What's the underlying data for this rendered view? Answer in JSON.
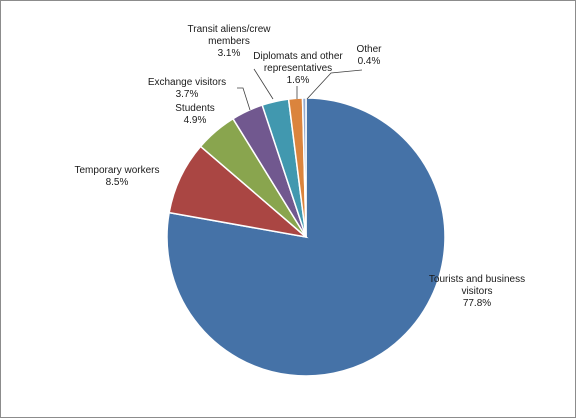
{
  "chart_data": {
    "type": "pie",
    "title": "",
    "slices": [
      {
        "label": [
          "Tourists and business",
          "visitors"
        ],
        "pct_label": "77.8%",
        "value": 77.8,
        "color": "#4572a7"
      },
      {
        "label": [
          "Temporary workers"
        ],
        "pct_label": "8.5%",
        "value": 8.5,
        "color": "#aa4643"
      },
      {
        "label": [
          "Students"
        ],
        "pct_label": "4.9%",
        "value": 4.9,
        "color": "#89a54e"
      },
      {
        "label": [
          "Exchange visitors"
        ],
        "pct_label": "3.7%",
        "value": 3.7,
        "color": "#71588f"
      },
      {
        "label": [
          "Transit aliens/crew",
          "members"
        ],
        "pct_label": "3.1%",
        "value": 3.1,
        "color": "#4198af"
      },
      {
        "label": [
          "Diplomats and other",
          "representatives"
        ],
        "pct_label": "1.6%",
        "value": 1.6,
        "color": "#db843d"
      },
      {
        "label": [
          "Other"
        ],
        "pct_label": "0.4%",
        "value": 0.4,
        "color": "#93a9cf"
      }
    ],
    "legend": "none"
  }
}
